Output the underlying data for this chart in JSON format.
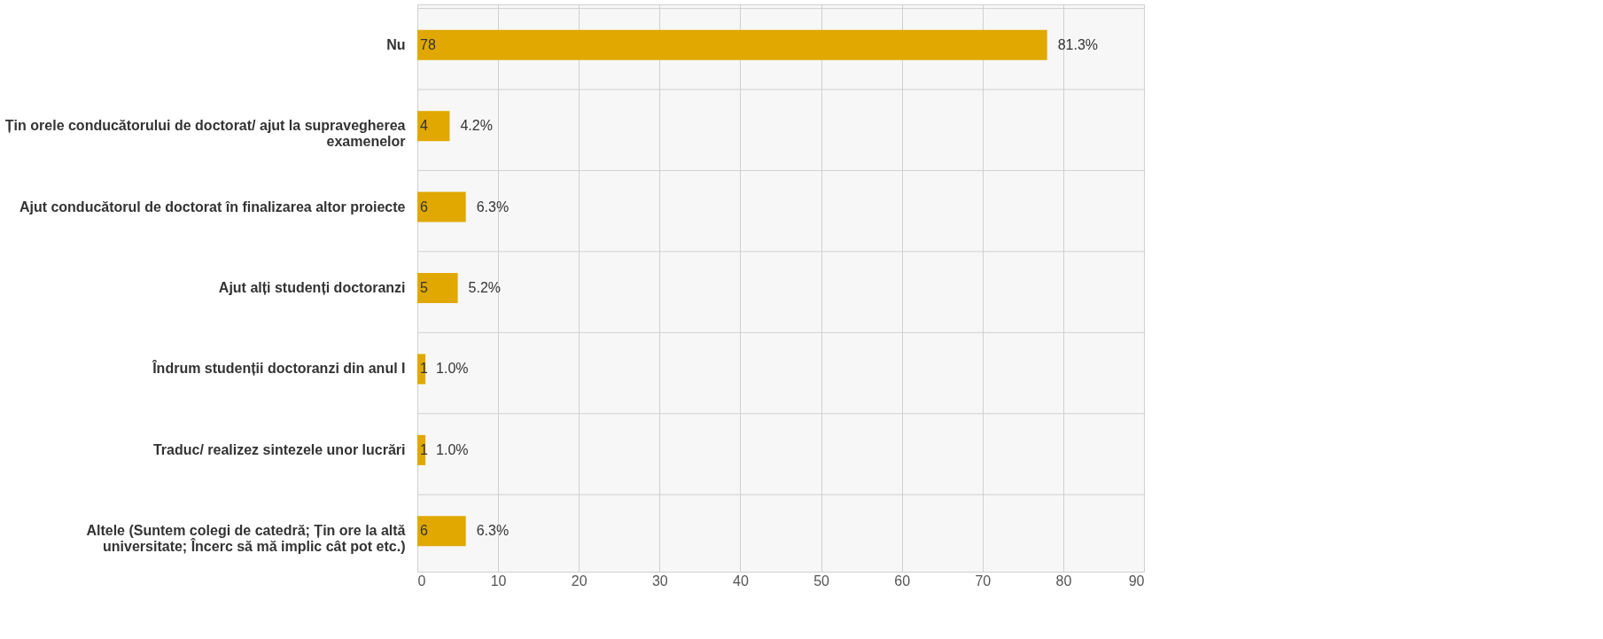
{
  "chart_data": {
    "type": "bar",
    "orientation": "horizontal",
    "categories": [
      "Nu",
      "Țin orele conducătorului de doctorat/ ajut la supravegherea examenelor",
      "Ajut conducătorul de doctorat în finalizarea altor proiecte",
      "Ajut alți studenți doctoranzi",
      "Îndrum studenții doctoranzi din anul I",
      "Traduc/ realizez sintezele unor lucrări",
      "Altele (Suntem colegi de catedră; Țin ore la altă universitate; Încerc să mă implic cât pot etc.)"
    ],
    "values": [
      78,
      4,
      6,
      5,
      1,
      1,
      6
    ],
    "color": "#e0a800",
    "data_labels": true,
    "annotations": [
      {
        "text": "81.3%",
        "x": 78,
        "y": "Nu"
      },
      {
        "text": "4.2%",
        "x": 4,
        "y": "Țin orele conducătorului de doctorat/ ajut la supravegherea examenelor"
      },
      {
        "text": "6.3%",
        "x": 6,
        "y": "Ajut conducătorul de doctorat în finalizarea altor proiecte"
      },
      {
        "text": "5.2%",
        "x": 5,
        "y": "Ajut alți studenți doctoranzi"
      },
      {
        "text": "1.0%",
        "x": 1,
        "y": "Îndrum studenții doctoranzi din anul I"
      },
      {
        "text": "1.0%",
        "x": 1,
        "y": "Traduc/ realizez sintezele unor lucrări"
      },
      {
        "text": "6.3%",
        "x": 6,
        "y": "Altele (Suntem colegi de catedră; Țin ore la altă universitate; Încerc să mă implic cât pot etc.)"
      }
    ],
    "xlim": [
      0,
      90
    ],
    "xticks": [
      0,
      10,
      20,
      30,
      40,
      50,
      60,
      70,
      80,
      90
    ],
    "grid": true
  }
}
